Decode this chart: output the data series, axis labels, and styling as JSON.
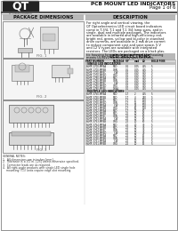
{
  "page_bg": "#ffffff",
  "title_right": "PCB MOUNT LED INDICATORS",
  "subtitle_right": "Page 1 of 6",
  "section_left": "PACKAGE DIMENSIONS",
  "section_right": "DESCRIPTION",
  "qt_logo_text": "QT",
  "qt_sub_text": "OPTOELECTRONICS",
  "desc_text": "For right angle and vertical viewing, the\nQT Optoelectronics LED circuit board indicators\ncome in T-3/4, T-1 and T-1 3/4 lamp sizes, and in\nsingle, dual and multiple packages. The indicators\nare available in infrared and high-efficiency red,\nbright red, green, yellow and bi-color in standard\ndrive currents, are available in 2 mA drive current\nto reduce component cost and save space, 5 V\nand 12 V types are available with integrated\nresistors. The LEDs are packaged on a black plas-\ntic housing for optical contrast, and the housing\nmeets UL94V0 flammability specifications.",
  "table_header": "LED SELECTIONS",
  "fig1_label": "FIG. 1",
  "fig2_label": "FIG. 2",
  "fig3_label": "FIG. 3",
  "notes_text": "GENERAL NOTES:\n1.  All dimensions are in inches [mm].\n2.  Tolerance is ±.01 in. [.25] unless otherwise specified.\n3.  Connector leads are as required.\n4.  All right-angle products with single LED single hole\n    mounting (T-1) units require edge-slot mounting.",
  "header_bar_color": "#888888",
  "section_header_bg": "#b8b8b8",
  "table_header_bg": "#b8b8b8",
  "text_color": "#111111",
  "fig_bg": "#f5f5f5",
  "fig_border": "#666666",
  "table_rows_single": [
    [
      "HLMP-1700.MP4A",
      "RED",
      "0.1",
      "0.05",
      "465",
      "5"
    ],
    [
      "HLMP-1700.MP4B",
      "GRN",
      "0.1",
      "0.05",
      "465",
      "5"
    ],
    [
      "HLMP-1700.MP4C",
      "YLW",
      "0.1",
      "0.05",
      "465",
      "5"
    ],
    [
      "HLMP-1700.MP4D",
      "ORG",
      "0.1",
      "0.05",
      "465",
      "5"
    ],
    [
      "HLMP-1790.MP4A",
      "RED",
      "0.1",
      "0.05",
      "465",
      "5"
    ],
    [
      "HLMP-1790.MP4B",
      "GRN",
      "0.1",
      "0.05",
      "465",
      "5"
    ],
    [
      "HLMP-1790.MP4C",
      "YLW",
      "0.1",
      "0.05",
      "465",
      "5"
    ],
    [
      "HLMP-1790.MP4D",
      "ORG",
      "0.1",
      "0.05",
      "465",
      "5"
    ],
    [
      "HLMP-1790.MP4E",
      "DUAL",
      "0.1",
      "0.05",
      "465",
      "5"
    ]
  ],
  "table_rows_multi": [
    [
      "HLMP-3750.MP4A",
      "RED",
      "1.7",
      "2",
      "465",
      "5"
    ],
    [
      "HLMP-3750.MP4B",
      "RED",
      "1.7",
      "4",
      "240",
      "5"
    ],
    [
      "HLMP-3750.MP4C",
      "RED",
      "1.7",
      "8",
      "120",
      "5"
    ],
    [
      "HLMP-3750.MP4D",
      "GRN",
      "1.7",
      "12",
      "120",
      "5"
    ],
    [
      "HLMP-3751.MP4A",
      "YLW",
      "1.7",
      "14",
      "120",
      "5"
    ],
    [
      "HLMP-3751.MP4B",
      "ORG",
      "1.7",
      "16",
      "120",
      "5"
    ],
    [
      "HLMP-3752.MP4A",
      "RED",
      "1.7",
      "20",
      "60",
      "5"
    ],
    [
      "HLMP-3752.MP4B",
      "RED",
      "2.2",
      "20",
      "60",
      "5"
    ],
    [
      "HLMP-3752.MP4C",
      "GRN",
      "2.2",
      "20",
      "60",
      "5"
    ],
    [
      "HLMP-3753.MP4A",
      "YLW",
      "2.2",
      "20",
      "60",
      "5"
    ],
    [
      "HLMP-3753.MP4B",
      "ORG",
      "2.2",
      "20",
      "60",
      "5"
    ],
    [
      "HLMP-3754.MP4A",
      "RED",
      "2.2",
      "20",
      "30",
      "5"
    ],
    [
      "HLMP-3754.MP4B",
      "RED",
      "2.2",
      "20",
      "30",
      "5"
    ],
    [
      "HLMP-3754.MP4C",
      "GRN",
      "2.2",
      "20",
      "30",
      "5"
    ],
    [
      "HLMP-3754.MP4D",
      "YLW",
      "2.2",
      "20",
      "30",
      "5"
    ],
    [
      "HLMP-3760.MP4A",
      "RED",
      "2.2",
      "20",
      "15",
      "5"
    ],
    [
      "HLMP-3760.MP4B",
      "GRN",
      "2.2",
      "20",
      "15",
      "5"
    ],
    [
      "HLMP-3761.MP4A",
      "YLW",
      "2.2",
      "20",
      "15",
      "5"
    ],
    [
      "HLMP-3761.MP4B",
      "ORG",
      "2.2",
      "20",
      "15",
      "5"
    ]
  ],
  "col_header": [
    "PART NUMBER",
    "PACKAGE",
    "VIF",
    "mcd",
    "LD",
    "BULB PINS"
  ]
}
